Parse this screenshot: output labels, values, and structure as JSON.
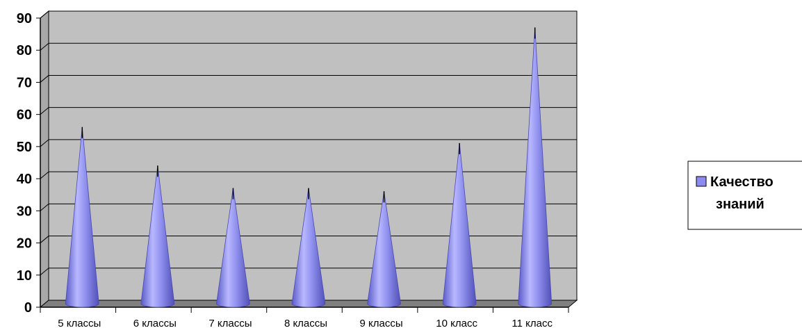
{
  "chart_data": {
    "type": "bar",
    "style": "3d-cone",
    "categories": [
      "5 классы",
      "6 классы",
      "7 классы",
      "8 классы",
      "9 классы",
      "10 класс",
      "11 класс"
    ],
    "series": [
      {
        "name": "Качество знаний",
        "values": [
          55,
          43,
          36,
          36,
          35,
          50,
          86
        ]
      }
    ],
    "ylim": [
      0,
      90
    ],
    "yticks": [
      0,
      10,
      20,
      30,
      40,
      50,
      60,
      70,
      80,
      90
    ],
    "grid": true,
    "legend_position": "right",
    "colors": {
      "cone": "#8c8cf0",
      "cone_light": "#d4d4ff",
      "cone_dark": "#4a4ab0",
      "plot_back": "#c0c0c0",
      "floor": "#808080",
      "grid": "#000000"
    }
  },
  "legend": {
    "line1": "Качество",
    "line2": "знаний"
  }
}
